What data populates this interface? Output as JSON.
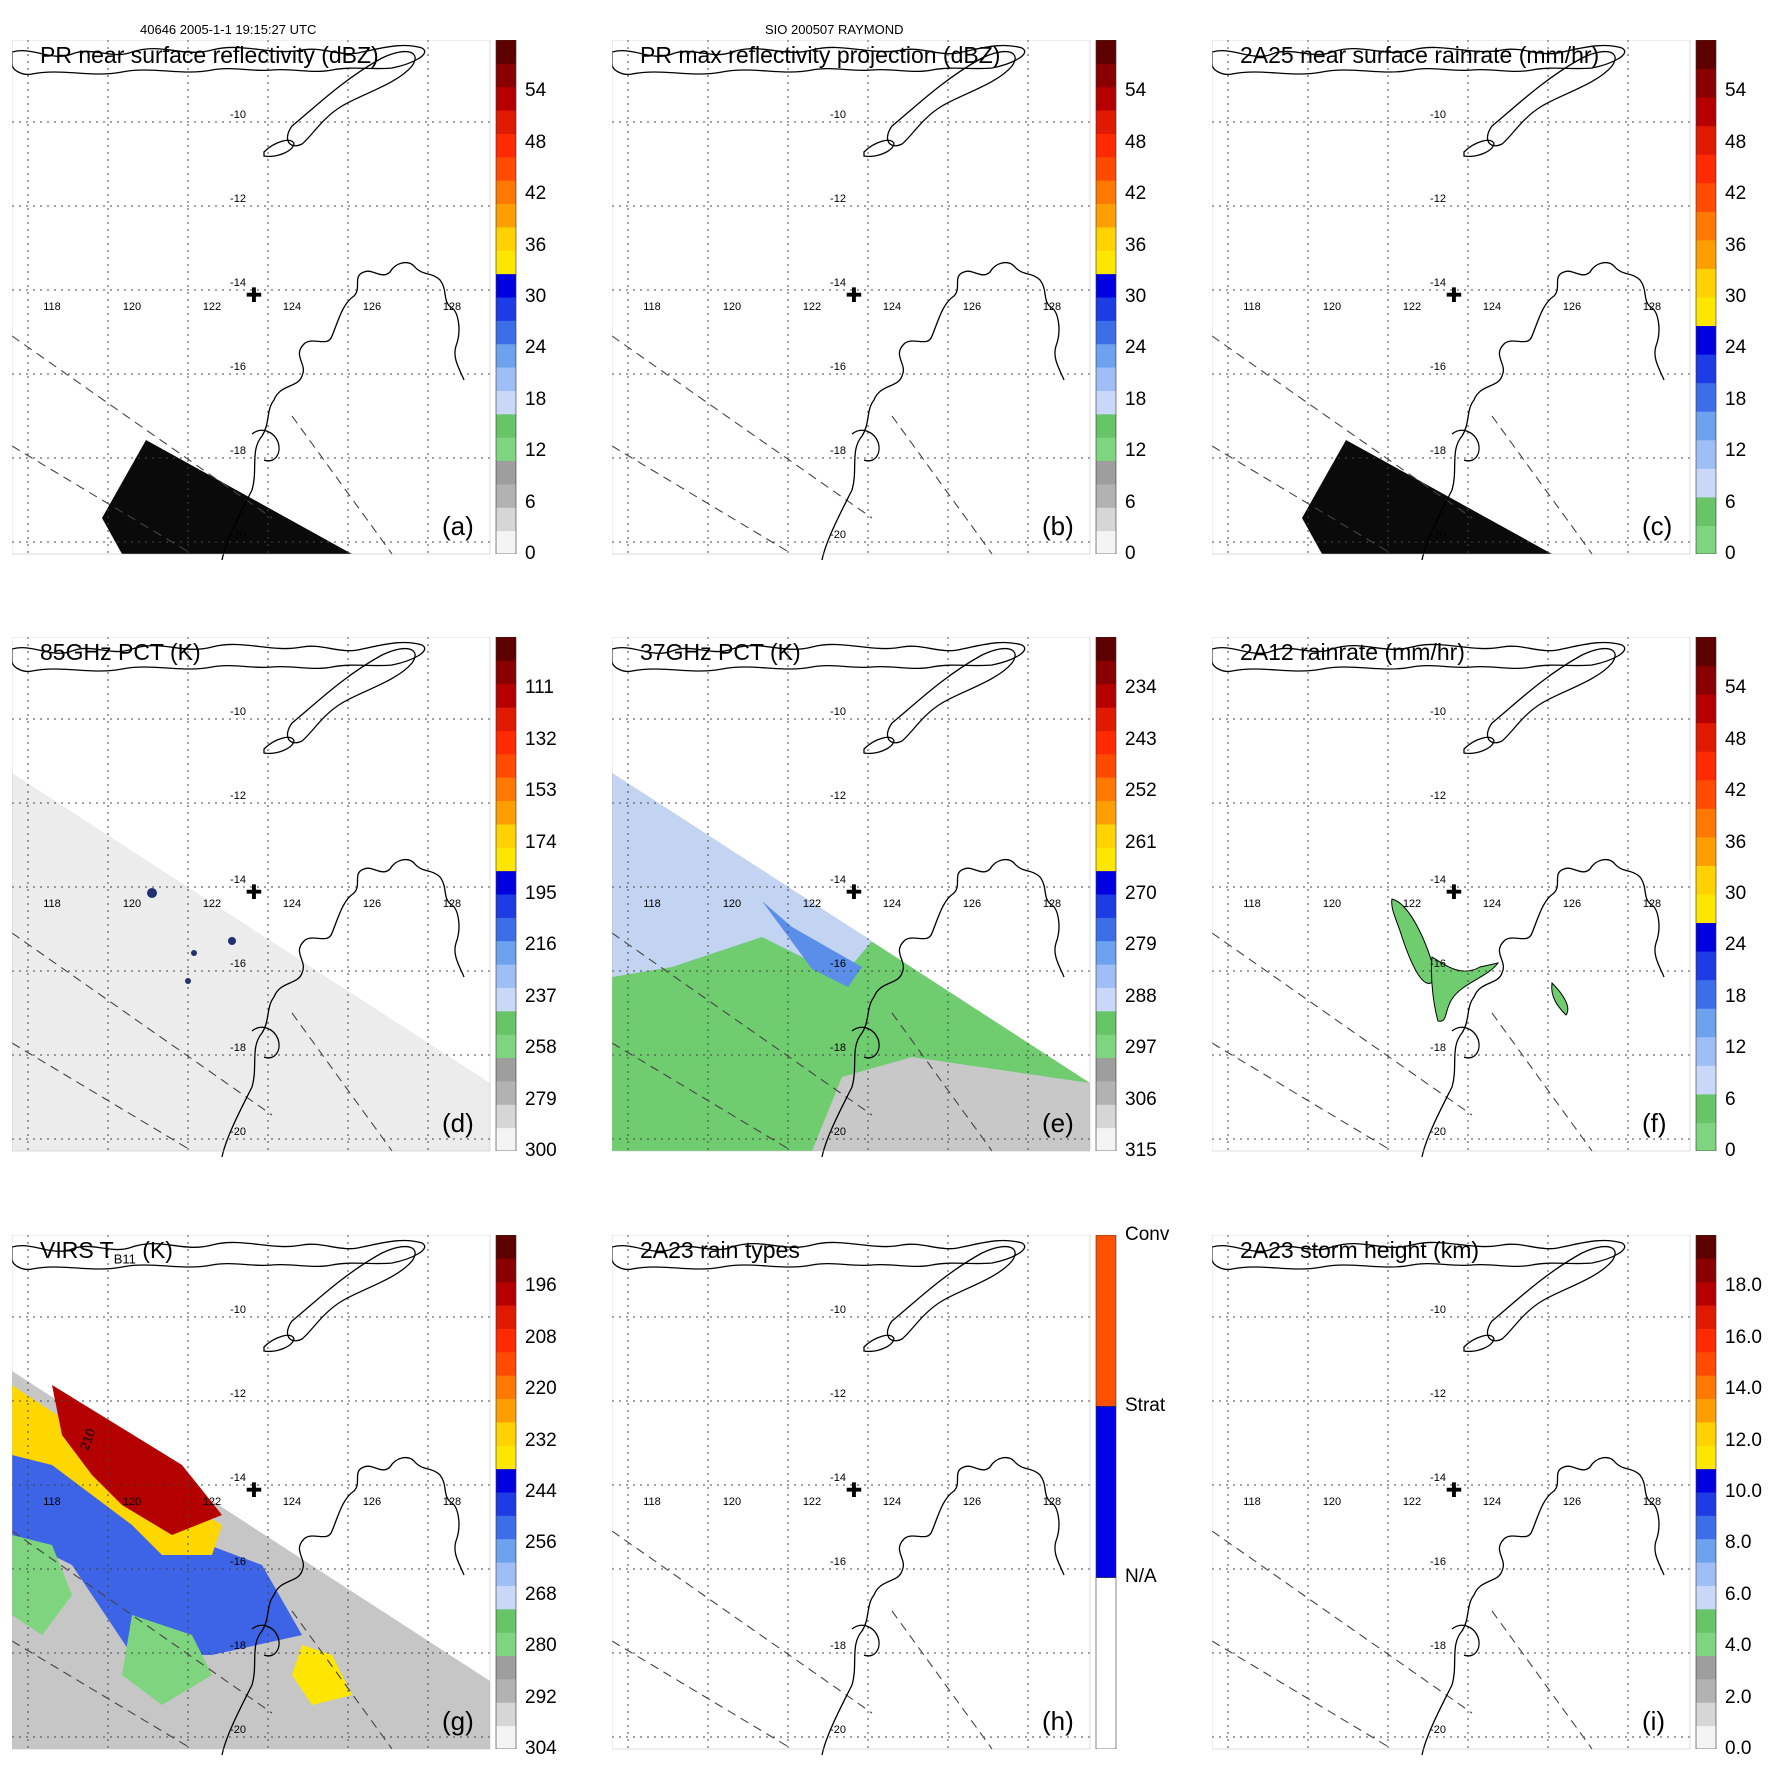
{
  "header": {
    "orbit_time": "40646 2005-1-1 19:15:27 UTC",
    "case": "SIO 200507 RAYMOND"
  },
  "map": {
    "lon_labels": [
      "118",
      "120",
      "122",
      "124",
      "126",
      "128"
    ],
    "lat_labels": [
      "-10",
      "-12",
      "-14",
      "-16",
      "-18",
      "-20"
    ],
    "marker_symbol": "✚"
  },
  "panels": [
    {
      "id": "a",
      "title": "PR near surface reflectivity (dBZ)",
      "label": "(a)",
      "ticks": [
        "54",
        "48",
        "42",
        "36",
        "30",
        "24",
        "18",
        "12",
        "6",
        "0"
      ],
      "palette": "refl",
      "overlay": "swath-black"
    },
    {
      "id": "b",
      "title": "PR max reflectivity projection (dBZ)",
      "label": "(b)",
      "ticks": [
        "54",
        "48",
        "42",
        "36",
        "30",
        "24",
        "18",
        "12",
        "6",
        "0"
      ],
      "palette": "refl",
      "overlay": "none"
    },
    {
      "id": "c",
      "title": "2A25 near surface rainrate (mm/hr)",
      "label": "(c)",
      "ticks": [
        "54",
        "48",
        "42",
        "36",
        "30",
        "24",
        "18",
        "12",
        "6",
        "0"
      ],
      "palette": "rain",
      "overlay": "swath-black"
    },
    {
      "id": "d",
      "title": "85GHz PCT (K)",
      "label": "(d)",
      "ticks": [
        "111",
        "132",
        "153",
        "174",
        "195",
        "216",
        "237",
        "258",
        "279",
        "300"
      ],
      "palette": "refl",
      "overlay": "pct85"
    },
    {
      "id": "e",
      "title": "37GHz PCT (K)",
      "label": "(e)",
      "ticks": [
        "234",
        "243",
        "252",
        "261",
        "270",
        "279",
        "288",
        "297",
        "306",
        "315"
      ],
      "palette": "refl",
      "overlay": "pct37"
    },
    {
      "id": "f",
      "title": "2A12 rainrate (mm/hr)",
      "label": "(f)",
      "ticks": [
        "54",
        "48",
        "42",
        "36",
        "30",
        "24",
        "18",
        "12",
        "6",
        "0"
      ],
      "palette": "rain",
      "overlay": "rain2a12"
    },
    {
      "id": "g",
      "title": "VIRS T",
      "title_sub": "B11",
      "title_end": " (K)",
      "label": "(g)",
      "ticks": [
        "196",
        "208",
        "220",
        "232",
        "244",
        "256",
        "268",
        "280",
        "292",
        "304"
      ],
      "palette": "refl",
      "overlay": "virs",
      "contour_label": "210"
    },
    {
      "id": "h",
      "title": "2A23 rain types",
      "label": "(h)",
      "ticks": [
        "Conv",
        "Strat",
        "N/A"
      ],
      "palette": "raintype",
      "overlay": "none"
    },
    {
      "id": "i",
      "title": "2A23 storm height (km)",
      "label": "(i)",
      "ticks": [
        "18.0",
        "16.0",
        "14.0",
        "12.0",
        "10.0",
        "8.0",
        "6.0",
        "4.0",
        "2.0",
        "0.0"
      ],
      "palette": "refl",
      "overlay": "none"
    }
  ],
  "colors": {
    "refl": [
      "#f4f4f4",
      "#d6d6d6",
      "#b2b2b2",
      "#9e9e9e",
      "#7fd47f",
      "#67c467",
      "#c9d8f8",
      "#9fbef5",
      "#6da3ee",
      "#3c6ee8",
      "#1e3ce6",
      "#0000e0",
      "#ffe600",
      "#ffd200",
      "#ff9e00",
      "#ff7800",
      "#ff4b00",
      "#ff2a00",
      "#e01a00",
      "#b60000",
      "#8a0000",
      "#5e0000"
    ],
    "rain": [
      "#7fd47f",
      "#67c467",
      "#c9d8f8",
      "#9fbef5",
      "#6da3ee",
      "#3c6ee8",
      "#1e3ce6",
      "#0000e0",
      "#ffe600",
      "#ffd200",
      "#ff9e00",
      "#ff7800",
      "#ff4b00",
      "#ff2a00",
      "#e01a00",
      "#b60000",
      "#8a0000",
      "#5e0000"
    ],
    "raintype": [
      "#ffffff",
      "#0000e6",
      "#ff5000"
    ]
  }
}
